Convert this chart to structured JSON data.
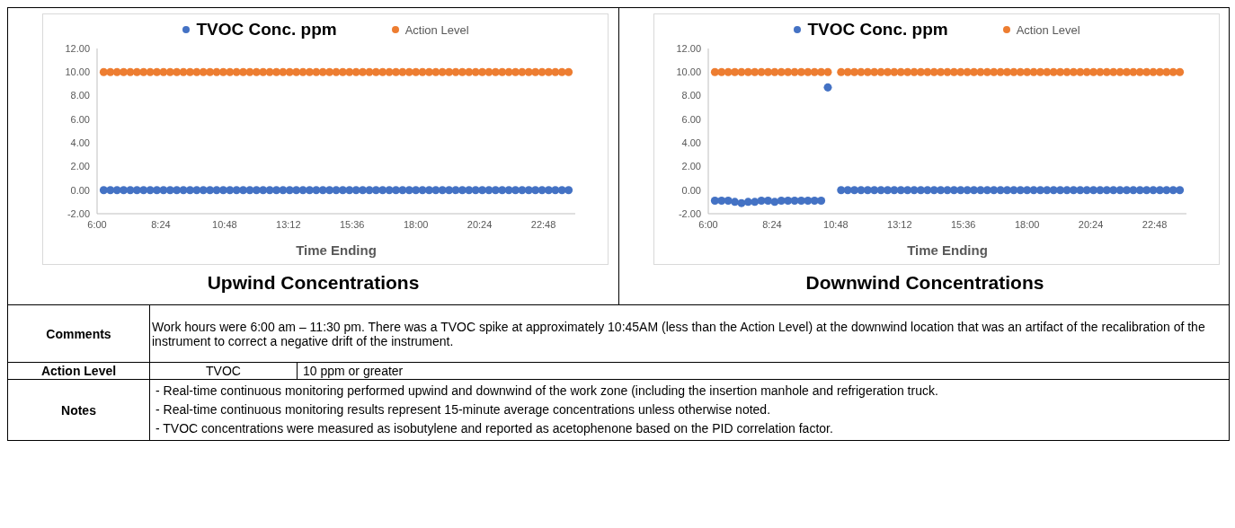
{
  "chart_data": [
    {
      "type": "scatter",
      "title": "Upwind Concentrations",
      "xlabel": "Time Ending",
      "legend": "top",
      "marker": "circle",
      "grid": false,
      "x": [
        6.25,
        6.5,
        6.75,
        7,
        7.25,
        7.5,
        7.75,
        8,
        8.25,
        8.5,
        8.75,
        9,
        9.25,
        9.5,
        9.75,
        10,
        10.25,
        10.5,
        10.75,
        11,
        11.25,
        11.5,
        11.75,
        12,
        12.25,
        12.5,
        12.75,
        13,
        13.25,
        13.5,
        13.75,
        14,
        14.25,
        14.5,
        14.75,
        15,
        15.25,
        15.5,
        15.75,
        16,
        16.25,
        16.5,
        16.75,
        17,
        17.25,
        17.5,
        17.75,
        18,
        18.25,
        18.5,
        18.75,
        19,
        19.25,
        19.5,
        19.75,
        20,
        20.25,
        20.5,
        20.75,
        21,
        21.25,
        21.5,
        21.75,
        22,
        22.25,
        22.5,
        22.75,
        23,
        23.25,
        23.5,
        23.75
      ],
      "xlim": [
        6,
        24
      ],
      "xticks": [
        {
          "value": 6,
          "label": "6:00"
        },
        {
          "value": 8.4,
          "label": "8:24"
        },
        {
          "value": 10.8,
          "label": "10:48"
        },
        {
          "value": 13.2,
          "label": "13:12"
        },
        {
          "value": 15.6,
          "label": "15:36"
        },
        {
          "value": 18,
          "label": "18:00"
        },
        {
          "value": 20.4,
          "label": "20:24"
        },
        {
          "value": 22.8,
          "label": "22:48"
        }
      ],
      "ylim": [
        -2,
        12
      ],
      "yticks": [
        {
          "value": -2,
          "label": "-2.00"
        },
        {
          "value": 0,
          "label": "0.00"
        },
        {
          "value": 2,
          "label": "2.00"
        },
        {
          "value": 4,
          "label": "4.00"
        },
        {
          "value": 6,
          "label": "6.00"
        },
        {
          "value": 8,
          "label": "8.00"
        },
        {
          "value": 10,
          "label": "10.00"
        },
        {
          "value": 12,
          "label": "12.00"
        }
      ],
      "series": [
        {
          "name": "TVOC Conc. ppm",
          "color": "#4472c4",
          "values": [
            0,
            0,
            0,
            0,
            0,
            0,
            0,
            0,
            0,
            0,
            0,
            0,
            0,
            0,
            0,
            0,
            0,
            0,
            0,
            0,
            0,
            0,
            0,
            0,
            0,
            0,
            0,
            0,
            0,
            0,
            0,
            0,
            0,
            0,
            0,
            0,
            0,
            0,
            0,
            0,
            0,
            0,
            0,
            0,
            0,
            0,
            0,
            0,
            0,
            0,
            0,
            0,
            0,
            0,
            0,
            0,
            0,
            0,
            0,
            0,
            0,
            0,
            0,
            0,
            0,
            0,
            0,
            0,
            0,
            0,
            0
          ]
        },
        {
          "name": "Action Level",
          "color": "#ed7d31",
          "values": [
            10,
            10,
            10,
            10,
            10,
            10,
            10,
            10,
            10,
            10,
            10,
            10,
            10,
            10,
            10,
            10,
            10,
            10,
            10,
            10,
            10,
            10,
            10,
            10,
            10,
            10,
            10,
            10,
            10,
            10,
            10,
            10,
            10,
            10,
            10,
            10,
            10,
            10,
            10,
            10,
            10,
            10,
            10,
            10,
            10,
            10,
            10,
            10,
            10,
            10,
            10,
            10,
            10,
            10,
            10,
            10,
            10,
            10,
            10,
            10,
            10,
            10,
            10,
            10,
            10,
            10,
            10,
            10,
            10,
            10,
            10
          ]
        }
      ]
    },
    {
      "type": "scatter",
      "title": "Downwind Concentrations",
      "xlabel": "Time Ending",
      "legend": "top",
      "marker": "circle",
      "grid": false,
      "x": [
        6.25,
        6.5,
        6.75,
        7,
        7.25,
        7.5,
        7.75,
        8,
        8.25,
        8.5,
        8.75,
        9,
        9.25,
        9.5,
        9.75,
        10,
        10.25,
        10.5,
        10.75,
        11,
        11.25,
        11.5,
        11.75,
        12,
        12.25,
        12.5,
        12.75,
        13,
        13.25,
        13.5,
        13.75,
        14,
        14.25,
        14.5,
        14.75,
        15,
        15.25,
        15.5,
        15.75,
        16,
        16.25,
        16.5,
        16.75,
        17,
        17.25,
        17.5,
        17.75,
        18,
        18.25,
        18.5,
        18.75,
        19,
        19.25,
        19.5,
        19.75,
        20,
        20.25,
        20.5,
        20.75,
        21,
        21.25,
        21.5,
        21.75,
        22,
        22.25,
        22.5,
        22.75,
        23,
        23.25,
        23.5,
        23.75
      ],
      "xlim": [
        6,
        24
      ],
      "xticks": [
        {
          "value": 6,
          "label": "6:00"
        },
        {
          "value": 8.4,
          "label": "8:24"
        },
        {
          "value": 10.8,
          "label": "10:48"
        },
        {
          "value": 13.2,
          "label": "13:12"
        },
        {
          "value": 15.6,
          "label": "15:36"
        },
        {
          "value": 18,
          "label": "18:00"
        },
        {
          "value": 20.4,
          "label": "20:24"
        },
        {
          "value": 22.8,
          "label": "22:48"
        }
      ],
      "ylim": [
        -2,
        12
      ],
      "yticks": [
        {
          "value": -2,
          "label": "-2.00"
        },
        {
          "value": 0,
          "label": "0.00"
        },
        {
          "value": 2,
          "label": "2.00"
        },
        {
          "value": 4,
          "label": "4.00"
        },
        {
          "value": 6,
          "label": "6.00"
        },
        {
          "value": 8,
          "label": "8.00"
        },
        {
          "value": 10,
          "label": "10.00"
        },
        {
          "value": 12,
          "label": "12.00"
        }
      ],
      "series": [
        {
          "name": "TVOC Conc. ppm",
          "color": "#4472c4",
          "values": [
            -0.9,
            -0.9,
            -0.9,
            -1.0,
            -1.1,
            -1.0,
            -1.0,
            -0.9,
            -0.9,
            -1.0,
            -0.9,
            -0.9,
            -0.9,
            -0.9,
            -0.9,
            -0.9,
            -0.9,
            8.7,
            null,
            0,
            0,
            0,
            0,
            0,
            0,
            0,
            0,
            0,
            0,
            0,
            0,
            0,
            0,
            0,
            0,
            0,
            0,
            0,
            0,
            0,
            0,
            0,
            0,
            0,
            0,
            0,
            0,
            0,
            0,
            0,
            0,
            0,
            0,
            0,
            0,
            0,
            0,
            0,
            0,
            0,
            0,
            0,
            0,
            0,
            0,
            0,
            0,
            0,
            0,
            0,
            0
          ]
        },
        {
          "name": "Action Level",
          "color": "#ed7d31",
          "values": [
            10,
            10,
            10,
            10,
            10,
            10,
            10,
            10,
            10,
            10,
            10,
            10,
            10,
            10,
            10,
            10,
            10,
            10,
            null,
            10,
            10,
            10,
            10,
            10,
            10,
            10,
            10,
            10,
            10,
            10,
            10,
            10,
            10,
            10,
            10,
            10,
            10,
            10,
            10,
            10,
            10,
            10,
            10,
            10,
            10,
            10,
            10,
            10,
            10,
            10,
            10,
            10,
            10,
            10,
            10,
            10,
            10,
            10,
            10,
            10,
            10,
            10,
            10,
            10,
            10,
            10,
            10,
            10,
            10,
            10,
            10
          ]
        }
      ]
    },
    {
      "type": "other",
      "annotations": [
        "Comments",
        "Work hours were 6:00 am – 11:30 pm.  There was a TVOC spike at approximately 10:45AM (less than the Action Level) at the downwind location that was an artifact of the recalibration of the instrument to correct a negative drift of the instrument.",
        "Action Level",
        "TVOC",
        "10 ppm or greater",
        "Notes",
        "- Real-time continuous monitoring performed upwind and downwind of the work zone (including the insertion manhole and refrigeration truck.",
        "- Real-time continuous monitoring results represent 15-minute average concentrations unless otherwise noted.",
        "- TVOC concentrations were measured as isobutylene and reported as acetophenone based on the PID correlation factor."
      ]
    }
  ]
}
